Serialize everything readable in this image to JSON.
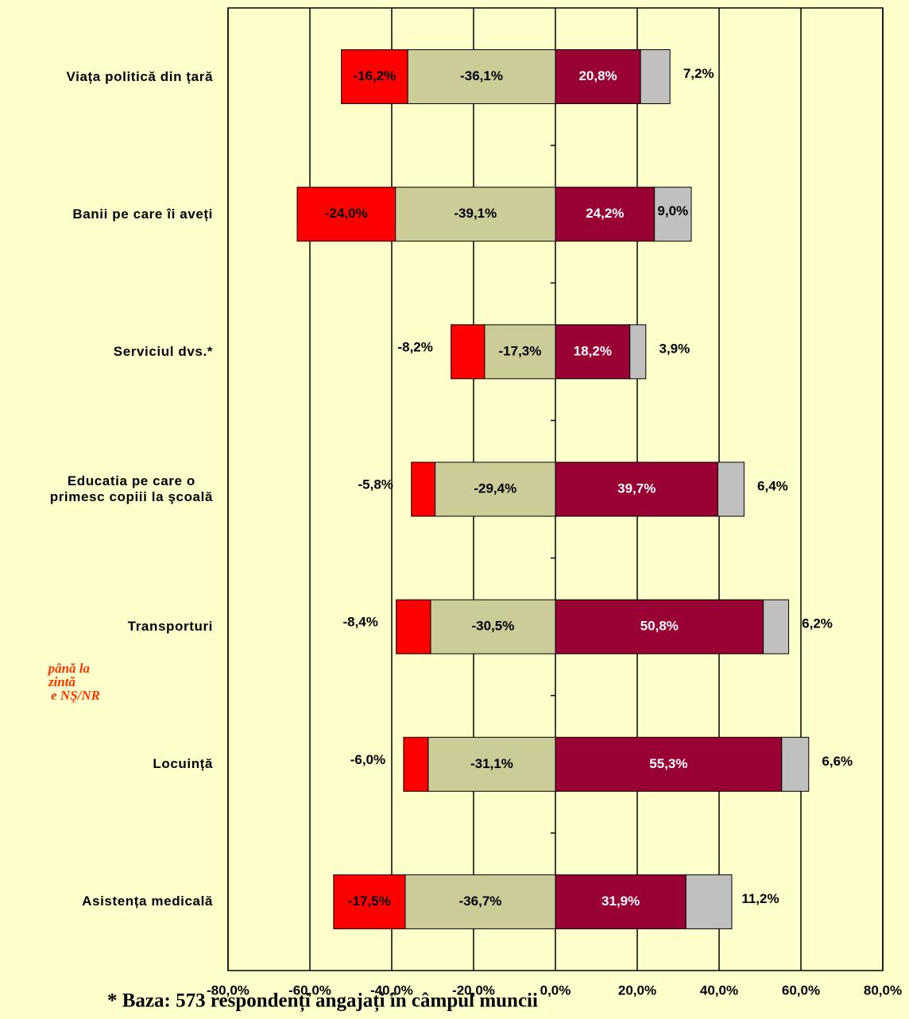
{
  "chart_data": {
    "type": "diverging-stacked-bar",
    "categories": [
      "Viața politică din țară",
      "Banii pe care îi aveți",
      "Serviciul dvs.*",
      "Educatia pe care o\nprimesc copiii la şcoală",
      "Transporturi",
      "Locuință",
      "Asistența medicală"
    ],
    "series": [
      {
        "color": "#ff0000",
        "values": [
          -16.2,
          -24.0,
          -8.2,
          -5.8,
          -8.4,
          -6.0,
          -17.5
        ],
        "value_labels": [
          "-16,2%",
          "-24,0%",
          "-8,2%",
          "-5,8%",
          "-8,4%",
          "-6,0%",
          "-17,5%"
        ]
      },
      {
        "color": "#cccc99",
        "values": [
          -36.1,
          -39.1,
          -17.3,
          -29.4,
          -30.5,
          -31.1,
          -36.7
        ],
        "value_labels": [
          "-36,1%",
          "-39,1%",
          "-17,3%",
          "-29,4%",
          "-30,5%",
          "-31,1%",
          "-36,7%"
        ]
      },
      {
        "color": "#990033",
        "values": [
          20.8,
          24.2,
          18.2,
          39.7,
          50.8,
          55.3,
          31.9
        ],
        "value_labels": [
          "20,8%",
          "24,2%",
          "18,2%",
          "39,7%",
          "50,8%",
          "55,3%",
          "31,9%"
        ]
      },
      {
        "color": "#c0c0c0",
        "values": [
          7.2,
          9.0,
          3.9,
          6.4,
          6.2,
          6.6,
          11.2
        ],
        "value_labels": [
          "7,2%",
          "9,0%",
          "3,9%",
          "6,4%",
          "6,2%",
          "6,6%",
          "11,2%"
        ]
      }
    ],
    "xlim": [
      -80,
      80
    ],
    "xticks": [
      {
        "value": -80,
        "label": "-80,0%"
      },
      {
        "value": -60,
        "label": "-60,0%"
      },
      {
        "value": -40,
        "label": "-40,0%"
      },
      {
        "value": -20,
        "label": "-20,0%"
      },
      {
        "value": 0,
        "label": "0,0%"
      },
      {
        "value": 20,
        "label": "20,0%"
      },
      {
        "value": 40,
        "label": "40,0%"
      },
      {
        "value": 60,
        "label": "60,0%"
      },
      {
        "value": 80,
        "label": "80,0%"
      }
    ],
    "grid": true,
    "annotations": [
      "până la",
      "zintă",
      "e NŞ/NR"
    ],
    "footnote": "* Baza: 573 respondenți angajați în câmpul muncii"
  }
}
